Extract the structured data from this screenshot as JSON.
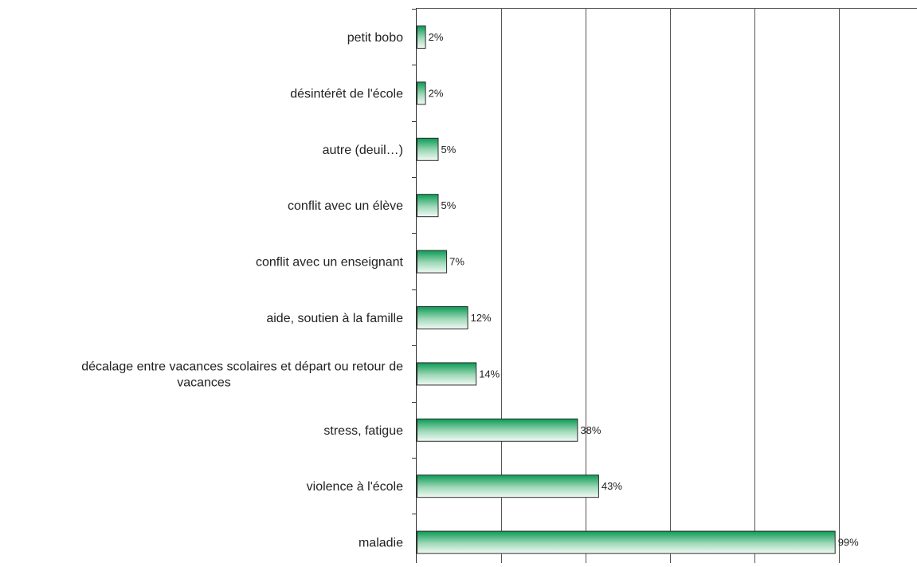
{
  "chart_data": {
    "type": "bar",
    "orientation": "horizontal",
    "categories": [
      "petit bobo",
      "désintérêt de l'école",
      "autre (deuil…)",
      "conflit avec un élève",
      "conflit avec un enseignant",
      "aide, soutien à la famille",
      "décalage entre vacances scolaires et départ ou retour de vacances",
      "stress, fatigue",
      "violence à l'école",
      "maladie"
    ],
    "category_label_lines": [
      [
        "petit bobo"
      ],
      [
        "désintérêt de l'école"
      ],
      [
        "autre (deuil…)"
      ],
      [
        "conflit avec un élève"
      ],
      [
        "conflit avec un enseignant"
      ],
      [
        "aide, soutien à la famille"
      ],
      [
        "décalage entre vacances scolaires et départ ou retour de",
        "vacances"
      ],
      [
        "stress, fatigue"
      ],
      [
        "violence à l'école"
      ],
      [
        "maladie"
      ]
    ],
    "values": [
      2,
      2,
      5,
      5,
      7,
      12,
      14,
      38,
      43,
      99
    ],
    "value_labels": [
      "2%",
      "2%",
      "5%",
      "5%",
      "7%",
      "12%",
      "14%",
      "38%",
      "43%",
      "99%"
    ],
    "xlim": [
      0,
      120
    ],
    "x_gridlines": [
      20,
      40,
      60,
      80,
      100,
      120
    ],
    "x_tick_labels_visible": false,
    "grid": true,
    "legend": "none",
    "colors": {
      "bar_top": "#0a9a55",
      "bar_bottom": "#f2faf5",
      "bar_border": "#2b2b2b",
      "grid": "#555555"
    }
  }
}
